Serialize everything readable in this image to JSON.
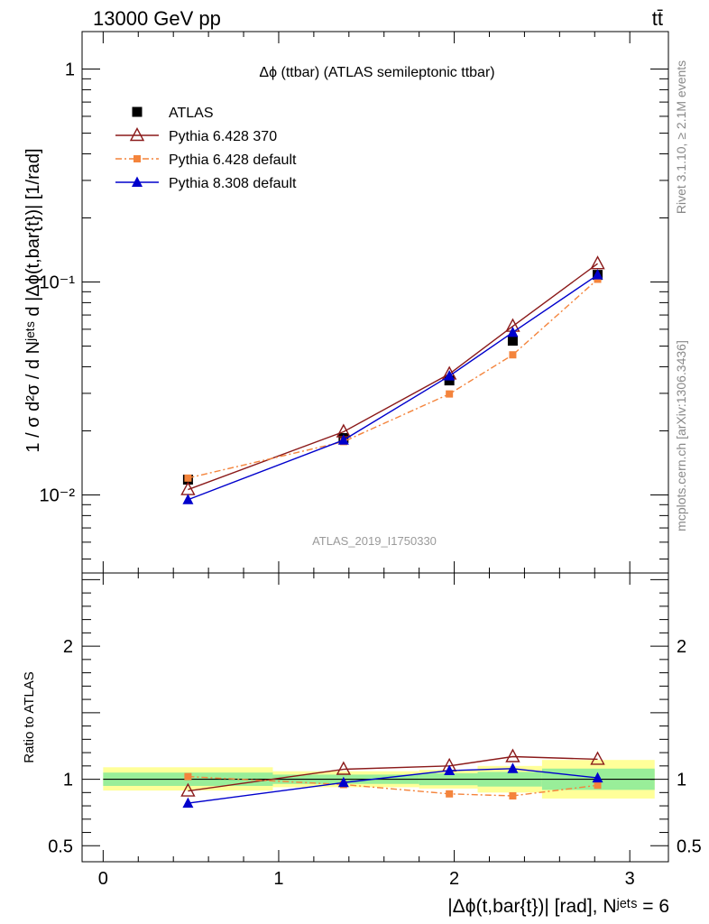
{
  "header": {
    "energy_label": "13000 GeV pp",
    "process_label": "tt̄"
  },
  "side_labels": {
    "rivet": "Rivet 3.1.10, ≥ 2.1M events",
    "mcplots": "mcplots.cern.ch [arXiv:1306.3436]"
  },
  "chart_data": [
    {
      "type": "line",
      "title": "Δϕ (ttbar) (ATLAS semileptonic ttbar)",
      "watermark": "ATLAS_2019_I1750330",
      "ylabel": "1 / σ d²σ / d Nʲᵉᵗˢ d |Δϕ(t,bar{t})| [1/rad]",
      "yscale": "log",
      "ylim": [
        0.0043,
        1.5
      ],
      "xlim": [
        -0.12,
        3.22
      ],
      "ytick_labels": [
        "10⁻²",
        "10⁻¹",
        "1"
      ],
      "legend_position": "top-left",
      "x": [
        0.4833,
        1.3694,
        1.9722,
        2.3333,
        2.8167
      ],
      "series": [
        {
          "name": "ATLAS",
          "marker": "square",
          "color": "#000000",
          "values": [
            0.0118,
            0.0185,
            0.0345,
            0.053,
            0.108
          ]
        },
        {
          "name": "Pythia 6.428 370",
          "marker": "triangle-open",
          "color": "#8b1a1a",
          "values": [
            0.0106,
            0.0198,
            0.037,
            0.062,
            0.122
          ]
        },
        {
          "name": "Pythia 6.428 default",
          "marker": "square-small",
          "color": "#f4843c",
          "values": [
            0.012,
            0.0178,
            0.0298,
            0.0455,
            0.103
          ]
        },
        {
          "name": "Pythia 8.308 default",
          "marker": "triangle",
          "color": "#0000cc",
          "values": [
            0.0095,
            0.0181,
            0.0362,
            0.058,
            0.108
          ]
        }
      ]
    },
    {
      "type": "line",
      "ylabel": "Ratio to ATLAS",
      "xlabel": "|Δϕ(t,bar{t})| [rad], Nʲᵉᵗˢ = 6",
      "ylim": [
        0.38,
        2.55
      ],
      "xlim": [
        -0.12,
        3.22
      ],
      "xtick_labels": [
        "0",
        "1",
        "2",
        "3"
      ],
      "ytick_labels": [
        "0.5",
        "1",
        "2"
      ],
      "bin_edges": [
        0,
        0.9667,
        1.8,
        2.1333,
        2.5,
        3.1416
      ],
      "band_inner": [
        [
          0.95,
          1.05
        ],
        [
          0.965,
          1.035
        ],
        [
          0.955,
          1.045
        ],
        [
          0.945,
          1.055
        ],
        [
          0.92,
          1.08
        ]
      ],
      "band_outer": [
        [
          0.915,
          1.09
        ],
        [
          0.94,
          1.06
        ],
        [
          0.93,
          1.07
        ],
        [
          0.9,
          1.1
        ],
        [
          0.855,
          1.145
        ]
      ],
      "x": [
        0.4833,
        1.3694,
        1.9722,
        2.3333,
        2.8167
      ],
      "series": [
        {
          "name": "Pythia 6.428 370",
          "color": "#8b1a1a",
          "values": [
            0.912,
            1.075,
            1.1,
            1.17,
            1.15
          ]
        },
        {
          "name": "Pythia 6.428 default",
          "color": "#f4843c",
          "values": [
            1.02,
            0.96,
            0.89,
            0.875,
            0.955
          ]
        },
        {
          "name": "Pythia 8.308 default",
          "color": "#0000cc",
          "values": [
            0.82,
            0.975,
            1.065,
            1.08,
            1.01
          ]
        }
      ]
    }
  ]
}
